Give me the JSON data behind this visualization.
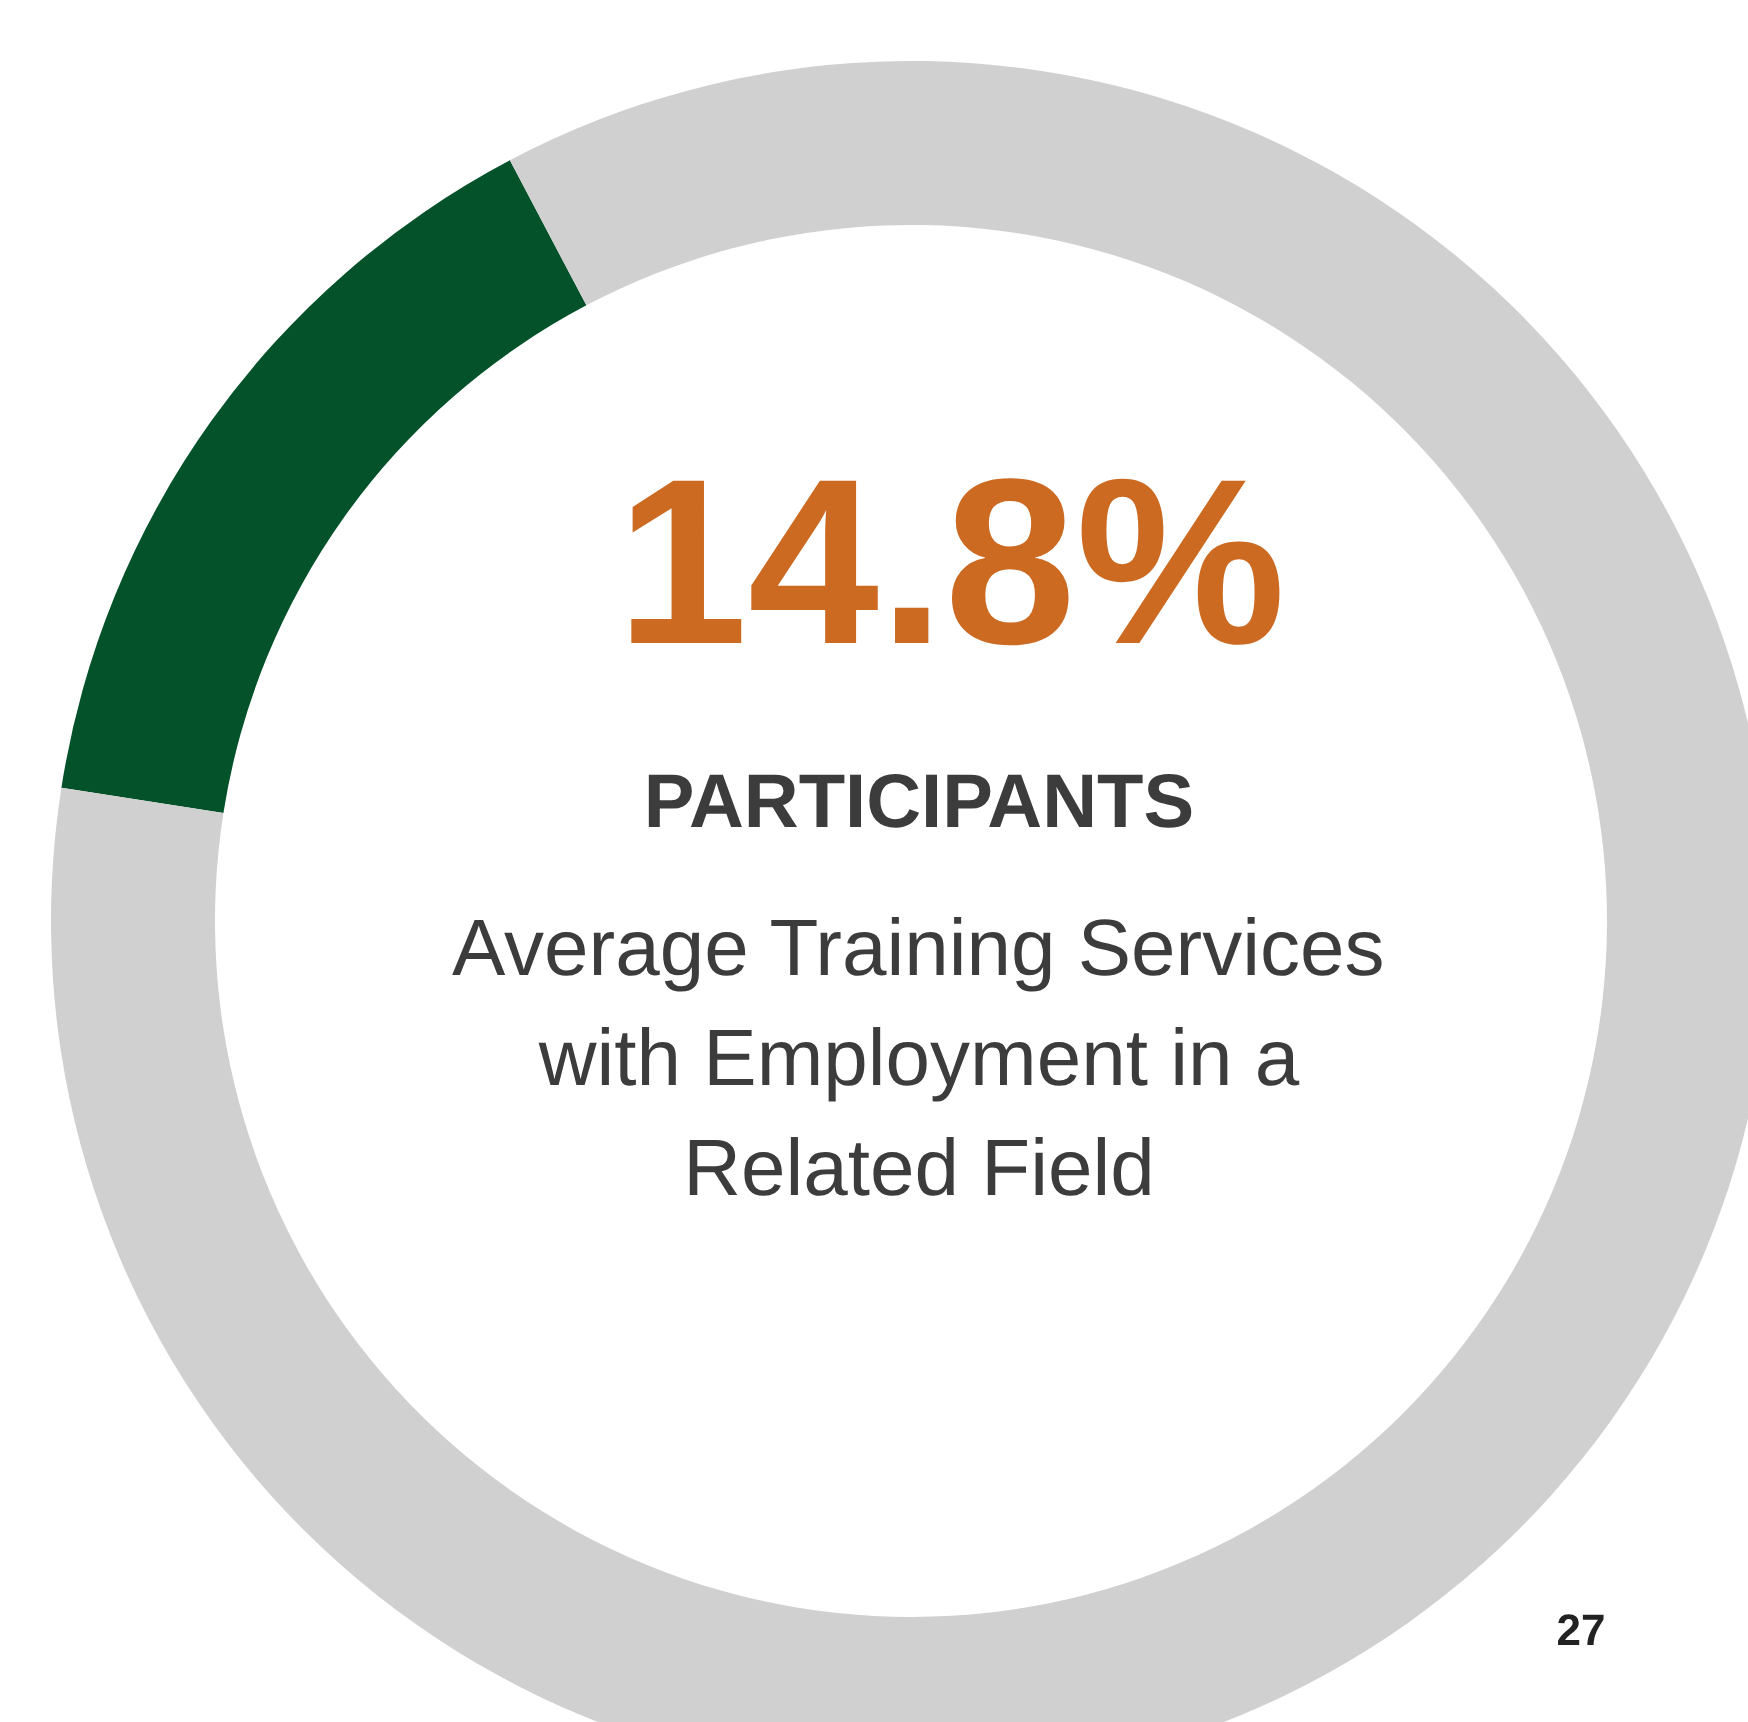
{
  "chart_data": {
    "type": "donut",
    "categories": [
      null,
      null
    ],
    "values": [
      14.8,
      85.2
    ],
    "colors": [
      "#03522a",
      "#d0d0d0"
    ],
    "annotations": [
      "14.8%",
      "PARTICIPANTS",
      "Average Training Services\nwith Employment in a\nRelated Field",
      "27"
    ]
  }
}
